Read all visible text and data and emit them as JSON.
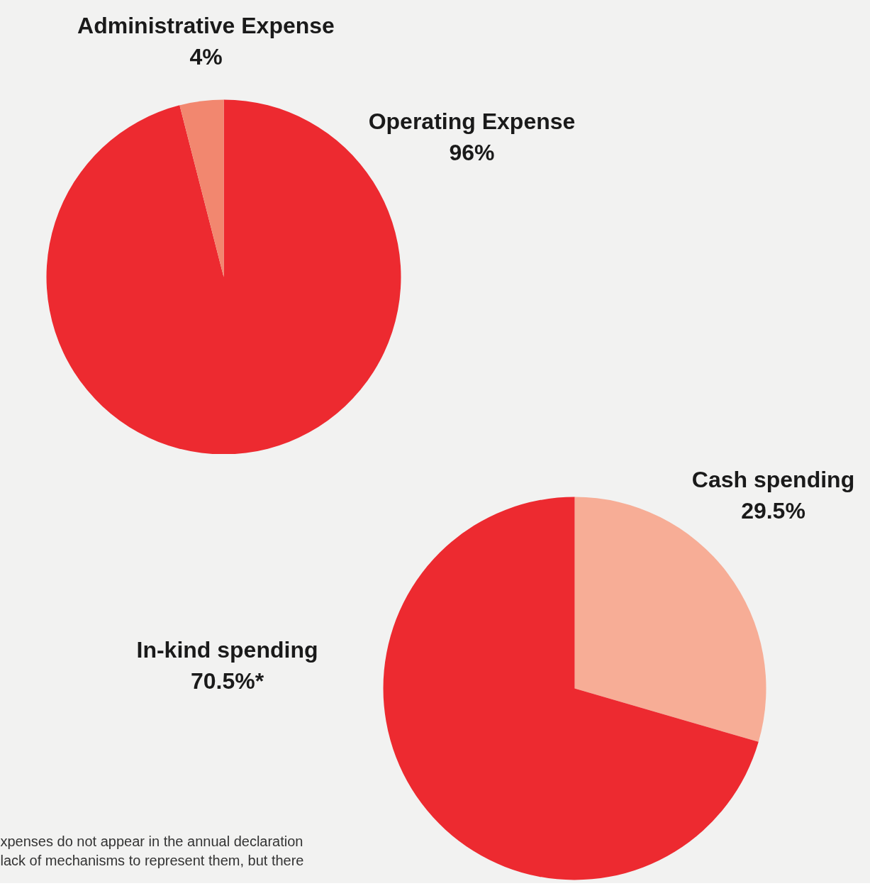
{
  "chart_data": [
    {
      "type": "pie",
      "categories": [
        "Operating Expense",
        "Administrative Expense"
      ],
      "values": [
        96,
        4
      ],
      "colors": [
        "#ed2a30",
        "#f2876f"
      ],
      "value_labels": [
        "96%",
        "4%"
      ]
    },
    {
      "type": "pie",
      "categories": [
        "Cash spending",
        "In-kind spending"
      ],
      "values": [
        29.5,
        70.5
      ],
      "colors": [
        "#f7ad96",
        "#ed2a30"
      ],
      "value_labels": [
        "29.5%",
        "70.5%*"
      ],
      "annotations": [
        "xpenses do not appear in the annual declaration",
        "lack of mechanisms to represent them, but there"
      ]
    }
  ]
}
